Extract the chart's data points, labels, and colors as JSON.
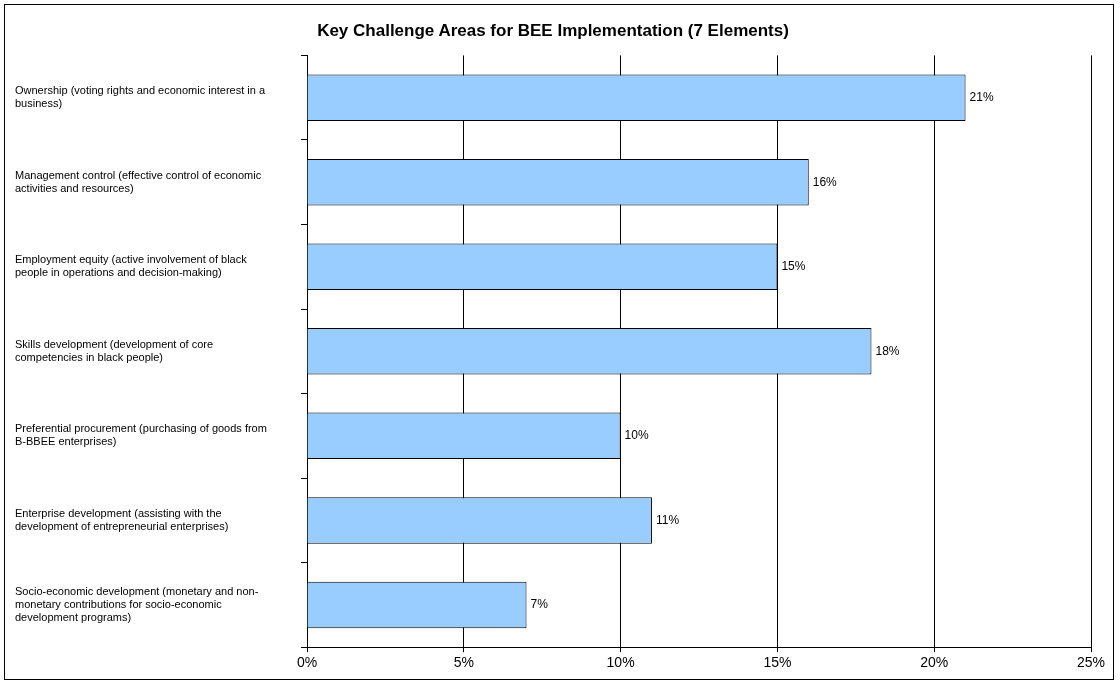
{
  "chart_data": {
    "type": "bar",
    "orientation": "horizontal",
    "title": "Key Challenge Areas for BEE Implementation (7 Elements)",
    "categories": [
      "Ownership (voting rights and economic interest in a business)",
      "Management control (effective control of economic activities and resources)",
      "Employment equity (active involvement of black people in operations and decision-making)",
      "Skills development (development of core competencies in black people)",
      "Preferential procurement (purchasing of goods from B-BBEE enterprises)",
      "Enterprise development (assisting with the development of entrepreneurial enterprises)",
      "Socio-economic development (monetary and non-monetary contributions for socio-economic development programs)"
    ],
    "values": [
      21,
      16,
      15,
      18,
      10,
      11,
      7
    ],
    "color": "#99ccff",
    "xlim": [
      0,
      25
    ],
    "xticks": [
      {
        "value": 0,
        "label": "0%"
      },
      {
        "value": 5,
        "label": "5%"
      },
      {
        "value": 10,
        "label": "10%"
      },
      {
        "value": 15,
        "label": "15%"
      },
      {
        "value": 20,
        "label": "20%"
      },
      {
        "value": 25,
        "label": "25%"
      }
    ],
    "value_labels": [
      "21%",
      "16%",
      "15%",
      "18%",
      "10%",
      "11%",
      "7%"
    ],
    "grid": "x"
  }
}
